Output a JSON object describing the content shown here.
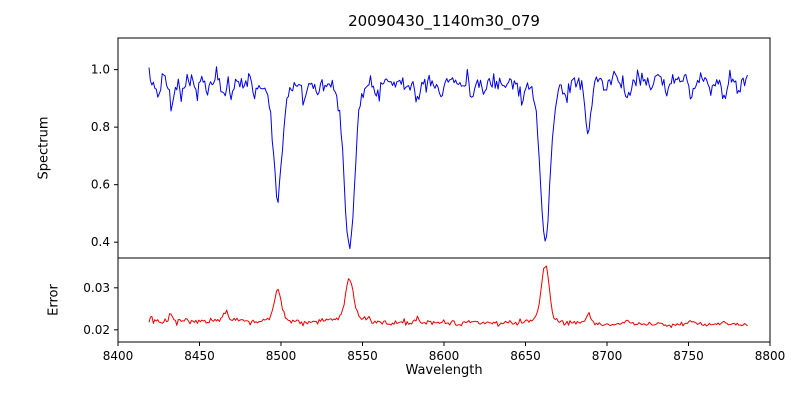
{
  "chart_data": {
    "type": "line",
    "title": "20090430_1140m30_079",
    "xlabel": "Wavelength",
    "xlim": [
      8400,
      8800
    ],
    "x_range": [
      8419,
      8787
    ],
    "x_step": 0.9,
    "x_ticks": [
      8400,
      8450,
      8500,
      8550,
      8600,
      8650,
      8700,
      8750,
      8800
    ],
    "axis_color": "#000000",
    "background": "#ffffff",
    "legend": "none",
    "grid": false,
    "panels": [
      {
        "ylabel": "Spectrum",
        "color": "#0000ee",
        "ylim": [
          0.345,
          1.11
        ],
        "yticks": [
          0.4,
          0.6,
          0.8,
          1.0
        ],
        "ytick_labels": [
          "0.4",
          "0.6",
          "0.8",
          "1.0"
        ],
        "base": [
          0.963,
          0.968
        ],
        "noise_sigma": [
          0.016,
          0.013
        ],
        "noise_seed": 7,
        "features": [
          {
            "center": 8424,
            "amp": -0.05,
            "width": 1.2
          },
          {
            "center": 8433,
            "amp": -0.1,
            "width": 1.5
          },
          {
            "center": 8439,
            "amp": -0.055,
            "width": 1.2
          },
          {
            "center": 8448,
            "amp": -0.045,
            "width": 1.3
          },
          {
            "center": 8455,
            "amp": -0.04,
            "width": 1.2
          },
          {
            "center": 8465,
            "amp": -0.07,
            "width": 1.4
          },
          {
            "center": 8470,
            "amp": -0.05,
            "width": 1.2
          },
          {
            "center": 8483,
            "amp": -0.04,
            "width": 1.2
          },
          {
            "center": 8498.0,
            "amp": -0.36,
            "width": 2.6
          },
          {
            "center": 8498.0,
            "amp": -0.045,
            "width": 8
          },
          {
            "center": 8514,
            "amp": -0.06,
            "width": 1.4
          },
          {
            "center": 8522,
            "amp": -0.04,
            "width": 1.2
          },
          {
            "center": 8542.1,
            "amp": -0.53,
            "width": 3.0
          },
          {
            "center": 8542.1,
            "amp": -0.05,
            "width": 10
          },
          {
            "center": 8560,
            "amp": -0.035,
            "width": 1.2
          },
          {
            "center": 8578,
            "amp": -0.04,
            "width": 1.2
          },
          {
            "center": 8584,
            "amp": -0.075,
            "width": 1.4
          },
          {
            "center": 8598,
            "amp": -0.06,
            "width": 1.3
          },
          {
            "center": 8611,
            "amp": -0.045,
            "width": 1.2
          },
          {
            "center": 8617,
            "amp": -0.06,
            "width": 1.3
          },
          {
            "center": 8625,
            "amp": -0.045,
            "width": 1.2
          },
          {
            "center": 8637,
            "amp": -0.035,
            "width": 1.2
          },
          {
            "center": 8648,
            "amp": -0.05,
            "width": 1.3
          },
          {
            "center": 8662.1,
            "amp": -0.515,
            "width": 2.9
          },
          {
            "center": 8662.1,
            "amp": -0.05,
            "width": 9
          },
          {
            "center": 8675,
            "amp": -0.055,
            "width": 1.3
          },
          {
            "center": 8688.6,
            "amp": -0.185,
            "width": 1.8
          },
          {
            "center": 8699,
            "amp": -0.04,
            "width": 1.2
          },
          {
            "center": 8713,
            "amp": -0.075,
            "width": 1.5
          },
          {
            "center": 8727,
            "amp": -0.045,
            "width": 1.2
          },
          {
            "center": 8736,
            "amp": -0.06,
            "width": 1.3
          },
          {
            "center": 8752,
            "amp": -0.075,
            "width": 1.4
          },
          {
            "center": 8764,
            "amp": -0.05,
            "width": 1.2
          },
          {
            "center": 8772,
            "amp": -0.07,
            "width": 1.4
          },
          {
            "center": 8781,
            "amp": -0.05,
            "width": 1.2
          }
        ]
      },
      {
        "ylabel": "Error",
        "color": "#ee0000",
        "ylim": [
          0.0171,
          0.0371
        ],
        "yticks": [
          0.02,
          0.03
        ],
        "ytick_labels": [
          "0.02",
          "0.03"
        ],
        "base": [
          0.0221,
          0.0212
        ],
        "noise_sigma": [
          0.00042,
          0.00028
        ],
        "noise_seed": 13,
        "features": [
          {
            "center": 8433,
            "amp": 0.0012,
            "width": 1.5
          },
          {
            "center": 8466,
            "amp": 0.002,
            "width": 1.8
          },
          {
            "center": 8498.0,
            "amp": 0.0068,
            "width": 2.0
          },
          {
            "center": 8498.0,
            "amp": 0.0008,
            "width": 6
          },
          {
            "center": 8542.1,
            "amp": 0.0088,
            "width": 2.3
          },
          {
            "center": 8542.1,
            "amp": 0.0014,
            "width": 8
          },
          {
            "center": 8584,
            "amp": 0.0008,
            "width": 1.5
          },
          {
            "center": 8598,
            "amp": 0.0006,
            "width": 1.3
          },
          {
            "center": 8662.1,
            "amp": 0.0128,
            "width": 2.3
          },
          {
            "center": 8662.1,
            "amp": 0.0012,
            "width": 8
          },
          {
            "center": 8688.6,
            "amp": 0.0022,
            "width": 1.7
          },
          {
            "center": 8713,
            "amp": 0.0007,
            "width": 1.4
          },
          {
            "center": 8752,
            "amp": 0.0007,
            "width": 1.4
          },
          {
            "center": 8772,
            "amp": 0.0009,
            "width": 1.4
          }
        ]
      }
    ]
  }
}
